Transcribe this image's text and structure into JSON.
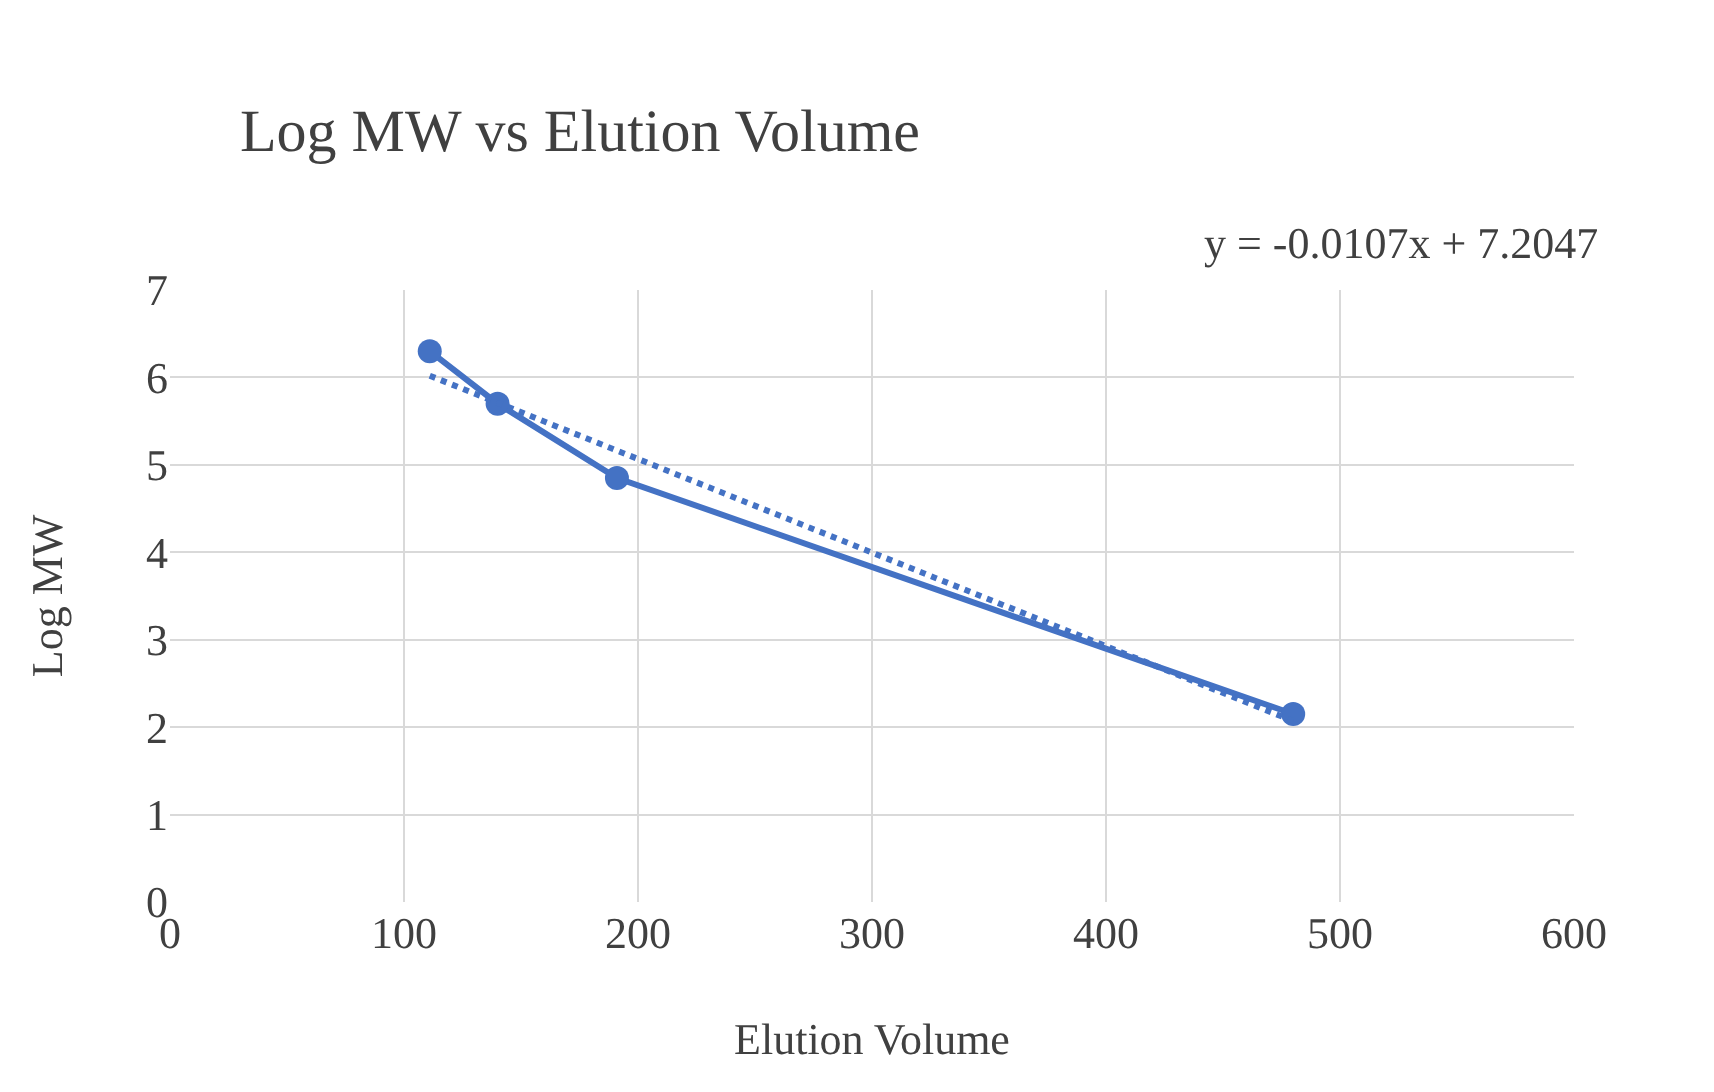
{
  "chart_data": {
    "type": "line",
    "title": "Log MW vs Elution Volume",
    "xlabel": "Elution Volume",
    "ylabel": "Log MW",
    "annotations": [
      "y = -0.0107x + 7.2047"
    ],
    "series": [
      {
        "color": "#4472c4",
        "x": [
          111,
          140,
          191,
          480
        ],
        "values": [
          6.3,
          5.7,
          4.85,
          2.15
        ],
        "marker": "circle",
        "line_style": "solid"
      },
      {
        "type": "line",
        "color": "#4472c4",
        "x": [
          111,
          480
        ],
        "values": [
          6.02,
          2.07
        ],
        "marker": "none",
        "line_style": "dotted"
      }
    ],
    "xlim": [
      0,
      600
    ],
    "xticks": [
      0,
      100,
      200,
      300,
      400,
      500,
      600
    ],
    "ylim": [
      0,
      7
    ],
    "yticks": [
      0,
      1,
      2,
      3,
      4,
      5,
      6,
      7
    ],
    "grid": true
  }
}
